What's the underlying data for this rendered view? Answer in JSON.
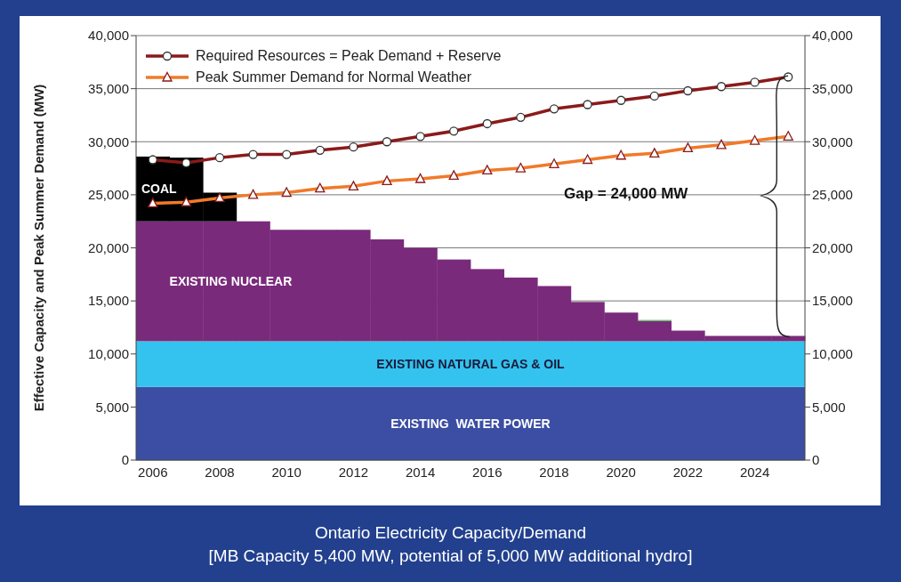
{
  "chart_data": {
    "type": "bar",
    "title": "Ontario Electricity Capacity/Demand",
    "subtitle": "[MB Capacity 5,400 MW, potential of 5,000 MW additional hydro]",
    "ylabel": "Effective Capacity and Peak Summer Demand (MW)",
    "categories": [
      "2006",
      null,
      "2008",
      null,
      "2010",
      null,
      "2012",
      null,
      "2014",
      null,
      "2016",
      null,
      "2018",
      null,
      "2020",
      null,
      "2022",
      null,
      "2024",
      null
    ],
    "bands": [
      {
        "axis": "y",
        "from": 0,
        "to": 6900,
        "label": "EXISTING  WATER POWER",
        "color": "#3c4ea3"
      },
      {
        "axis": "y",
        "from": 6900,
        "to": 11200,
        "label": "EXISTING NATURAL GAS & OIL",
        "color": "#33c3ee"
      }
    ],
    "series": [
      {
        "name": "EXISTING NUCLEAR",
        "color": "#7a2a7b",
        "base": [
          11200,
          11200,
          11200,
          11200,
          11200,
          11200,
          11200,
          11200,
          11200,
          11200,
          11200,
          11200,
          11200,
          11200,
          11200,
          11200,
          11200,
          11200,
          11200,
          11200
        ],
        "values": [
          11300,
          11300,
          11300,
          11300,
          10500,
          10500,
          10500,
          9600,
          8800,
          7700,
          6800,
          6000,
          5200,
          3700,
          2700,
          1900,
          1000,
          500,
          500,
          500
        ]
      },
      {
        "color": "#4caf50",
        "base": [
          null,
          null,
          null,
          null,
          null,
          null,
          null,
          null,
          null,
          null,
          null,
          null,
          null,
          null,
          null,
          13100,
          null,
          null,
          null,
          null
        ],
        "values": [
          null,
          null,
          null,
          null,
          null,
          null,
          null,
          null,
          null,
          null,
          null,
          null,
          null,
          null,
          null,
          100,
          null,
          null,
          null,
          null
        ]
      },
      {
        "name": "COAL",
        "color": "#000000",
        "base": [
          22500,
          22500,
          22500,
          null,
          null,
          null,
          null,
          null,
          null,
          null,
          null,
          null,
          null,
          null,
          null,
          null,
          null,
          null,
          null,
          null
        ],
        "values": [
          6100,
          6000,
          2700,
          null,
          null,
          null,
          null,
          null,
          null,
          null,
          null,
          null,
          null,
          null,
          null,
          null,
          null,
          null,
          null,
          null
        ]
      },
      {
        "name": "Required Resources = Peak Demand + Reserve",
        "type": "line",
        "color": "#8b1a1a",
        "marker": "circle",
        "values": [
          28300,
          28000,
          28500,
          28800,
          28800,
          29200,
          29500,
          30000,
          30500,
          31000,
          31700,
          32300,
          33100,
          33500,
          33900,
          34300,
          34800,
          35200,
          35600,
          36100
        ]
      },
      {
        "name": "Peak Summer Demand for Normal Weather",
        "type": "line",
        "color": "#f07a2a",
        "marker": "triangle",
        "values": [
          24200,
          24300,
          24700,
          25000,
          25200,
          25600,
          25800,
          26300,
          26500,
          26800,
          27300,
          27500,
          27900,
          28300,
          28700,
          28900,
          29400,
          29700,
          30100,
          30500
        ]
      }
    ],
    "ylim": [
      0,
      40000
    ],
    "yticks": [
      {
        "value": 0,
        "label": "0"
      },
      {
        "value": 5000,
        "label": "5,000"
      },
      {
        "value": 10000,
        "label": "10,000"
      },
      {
        "value": 15000,
        "label": "15,000"
      },
      {
        "value": 20000,
        "label": "20,000"
      },
      {
        "value": 25000,
        "label": "25,000"
      },
      {
        "value": 30000,
        "label": "30,000"
      },
      {
        "value": 35000,
        "label": "35,000"
      },
      {
        "value": 40000,
        "label": "40,000"
      }
    ],
    "y2lim": [
      0,
      40000
    ],
    "y2ticks": [
      {
        "value": 0,
        "label": "0"
      },
      {
        "value": 5000,
        "label": "5,000"
      },
      {
        "value": 10000,
        "label": "10,000"
      },
      {
        "value": 15000,
        "label": "15,000"
      },
      {
        "value": 20000,
        "label": "20,000"
      },
      {
        "value": 25000,
        "label": "25,000"
      },
      {
        "value": 30000,
        "label": "30,000"
      },
      {
        "value": 35000,
        "label": "35,000"
      },
      {
        "value": 40000,
        "label": "40,000"
      }
    ],
    "grid": "y",
    "legend": "top left",
    "annotations": [
      "Gap = 24,000 MW"
    ]
  }
}
